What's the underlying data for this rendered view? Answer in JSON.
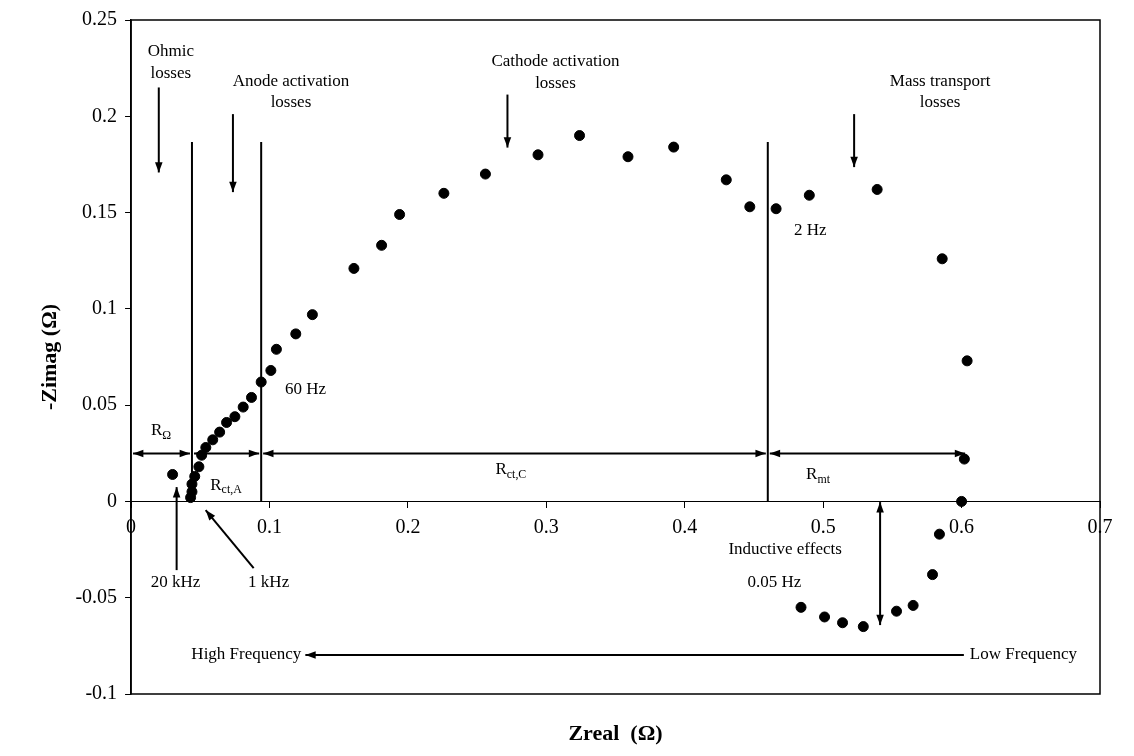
{
  "chart_data": {
    "type": "scatter",
    "xlabel": "Zreal  (Ω)",
    "ylabel": "-Zimag (Ω)",
    "x": [
      0.03,
      0.043,
      0.044,
      0.044,
      0.046,
      0.049,
      0.051,
      0.054,
      0.059,
      0.064,
      0.069,
      0.075,
      0.081,
      0.087,
      0.094,
      0.101,
      0.105,
      0.119,
      0.131,
      0.161,
      0.181,
      0.194,
      0.226,
      0.256,
      0.294,
      0.324,
      0.359,
      0.392,
      0.43,
      0.447,
      0.466,
      0.49,
      0.539,
      0.586,
      0.604,
      0.602,
      0.6,
      0.584,
      0.579,
      0.565,
      0.553,
      0.529,
      0.514,
      0.501,
      0.484
    ],
    "values": [
      0.014,
      0.002,
      0.005,
      0.009,
      0.013,
      0.018,
      0.024,
      0.028,
      0.032,
      0.036,
      0.041,
      0.044,
      0.049,
      0.054,
      0.062,
      0.068,
      0.079,
      0.087,
      0.097,
      0.121,
      0.133,
      0.149,
      0.16,
      0.17,
      0.18,
      0.19,
      0.179,
      0.184,
      0.167,
      0.153,
      0.152,
      0.159,
      0.162,
      0.126,
      0.073,
      0.022,
      0.0,
      -0.017,
      -0.038,
      -0.054,
      -0.057,
      -0.065,
      -0.063,
      -0.06,
      -0.055
    ],
    "color": "#000000",
    "marker": "circle",
    "grid": false,
    "legend": false,
    "xlim": [
      0,
      0.7
    ],
    "xticks": [
      0,
      0.1,
      0.2,
      0.3,
      0.4,
      0.5,
      0.6,
      0.7
    ],
    "ylim": [
      -0.1,
      0.25
    ],
    "yticks": [
      -0.1,
      -0.05,
      0,
      0.05,
      0.1,
      0.15,
      0.2,
      0.25
    ],
    "ref_lines": [
      {
        "axis": "x",
        "value": 0.044
      },
      {
        "axis": "x",
        "value": 0.094
      },
      {
        "axis": "x",
        "value": 0.46
      }
    ],
    "annotations": [
      "Ohmic losses",
      "Anode activation losses",
      "Cathode activation losses",
      "Mass transport losses",
      "60 Hz",
      "2 Hz",
      "20 kHz",
      "1 kHz",
      "Inductive effects",
      "0.05 Hz",
      "High Frequency",
      "Low Frequency",
      "R$_{Ω}$",
      "R$_{ct,A}$",
      "R$_{ct,C}$",
      "R$_{mt}$"
    ]
  }
}
